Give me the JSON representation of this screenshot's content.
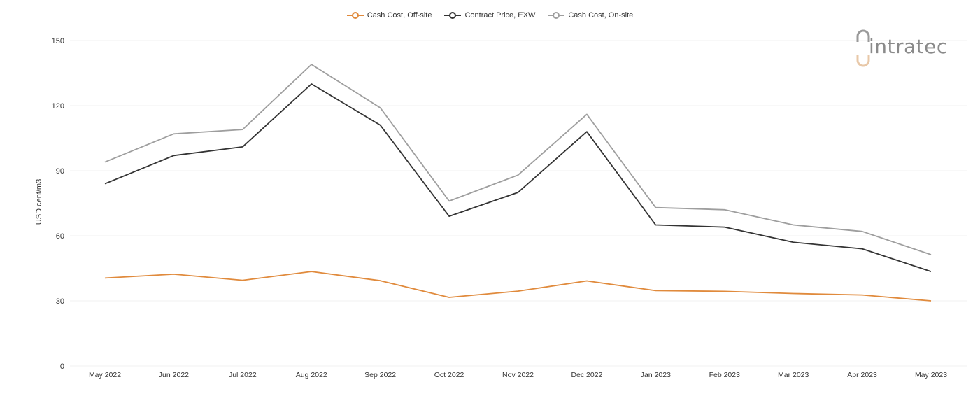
{
  "chart_data": {
    "type": "line",
    "categories": [
      "May 2022",
      "Jun 2022",
      "Jul 2022",
      "Aug 2022",
      "Sep 2022",
      "Oct 2022",
      "Nov 2022",
      "Dec 2022",
      "Jan 2023",
      "Feb 2023",
      "Mar 2023",
      "Apr 2023",
      "May 2023"
    ],
    "series": [
      {
        "name": "Cash Cost, Off-site",
        "color": "#e08a3c",
        "values": [
          40.5,
          42.3,
          39.5,
          43.5,
          39.3,
          31.6,
          34.5,
          39.2,
          34.7,
          34.4,
          33.4,
          32.7,
          30.0
        ]
      },
      {
        "name": "Contract Price, EXW",
        "color": "#333333",
        "values": [
          84,
          97,
          101,
          130,
          111,
          69,
          80,
          108,
          65,
          64,
          57,
          54,
          43.5
        ]
      },
      {
        "name": "Cash Cost, On-site",
        "color": "#9e9e9e",
        "values": [
          94,
          107,
          109,
          139,
          119,
          76,
          88,
          116,
          73,
          72,
          65,
          62,
          51.3
        ]
      }
    ],
    "yticks": [
      0,
      30,
      60,
      90,
      120,
      150
    ],
    "ylim": [
      0,
      150
    ],
    "ylabel": "USD cent/m3",
    "xlabel": "",
    "grid": true,
    "legend_position": "top-center"
  },
  "logo": {
    "text": "intratec"
  }
}
